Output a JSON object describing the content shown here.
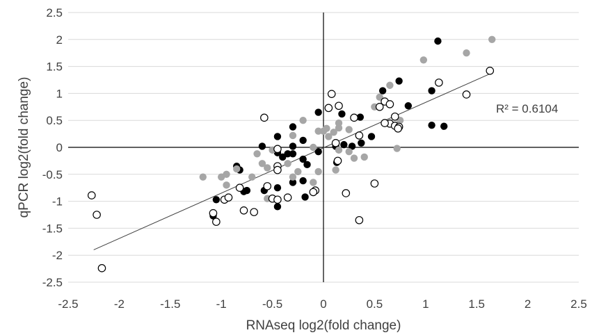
{
  "chart_data": {
    "type": "scatter",
    "title": "",
    "xlabel": "RNAseq log2(fold change)",
    "ylabel": "qPCR log2(fold change)",
    "xlim": [
      -2.5,
      2.5
    ],
    "ylim": [
      -2.5,
      2.5
    ],
    "x_ticks": [
      "-2.5",
      "-2",
      "-1.5",
      "-1",
      "-0.5",
      "0",
      "0.5",
      "1",
      "1.5",
      "2",
      "2.5"
    ],
    "y_ticks": [
      "2.5",
      "2",
      "1.5",
      "1",
      "0.5",
      "0",
      "-0.5",
      "-1",
      "-1.5",
      "-2",
      "-2.5"
    ],
    "grid": "horizontal",
    "legend": "none",
    "trendline": {
      "x": [
        -2.25,
        1.65
      ],
      "y": [
        -1.9,
        1.38
      ]
    },
    "annotation": "R² = 0.6104",
    "series": [
      {
        "style": "filled-black",
        "color": "#000000",
        "points": [
          [
            1.12,
            1.97
          ],
          [
            0.74,
            1.23
          ],
          [
            0.58,
            1.05
          ],
          [
            1.06,
            1.05
          ],
          [
            0.83,
            0.77
          ],
          [
            1.06,
            0.41
          ],
          [
            1.18,
            0.39
          ],
          [
            0.36,
            0.56
          ],
          [
            0.18,
            0.62
          ],
          [
            -0.05,
            0.65
          ],
          [
            -0.3,
            0.38
          ],
          [
            -0.45,
            0.2
          ],
          [
            -0.2,
            0.13
          ],
          [
            -0.6,
            0.02
          ],
          [
            -0.3,
            0.02
          ],
          [
            -0.45,
            -0.1
          ],
          [
            -0.35,
            -0.12
          ],
          [
            -0.4,
            -0.18
          ],
          [
            -0.2,
            -0.22
          ],
          [
            -0.3,
            -0.12
          ],
          [
            -0.05,
            -0.08
          ],
          [
            0.12,
            0.02
          ],
          [
            0.2,
            0.05
          ],
          [
            0.28,
            0.02
          ],
          [
            0.37,
            0.08
          ],
          [
            0.47,
            0.2
          ],
          [
            -0.85,
            -0.35
          ],
          [
            -0.82,
            -0.42
          ],
          [
            -0.75,
            -0.8
          ],
          [
            -0.78,
            -0.82
          ],
          [
            -0.58,
            -0.8
          ],
          [
            -0.45,
            -0.75
          ],
          [
            -0.3,
            -0.65
          ],
          [
            -0.2,
            -0.62
          ],
          [
            -0.18,
            -0.92
          ],
          [
            -0.45,
            -1.1
          ],
          [
            -1.05,
            -0.97
          ],
          [
            -1.08,
            -1.27
          ],
          [
            -0.16,
            -0.32
          ],
          [
            0.13,
            -0.28
          ]
        ]
      },
      {
        "style": "filled-gray",
        "color": "#a6a6a6",
        "points": [
          [
            1.65,
            2.0
          ],
          [
            1.4,
            1.75
          ],
          [
            0.98,
            1.62
          ],
          [
            0.65,
            1.15
          ],
          [
            0.55,
            0.93
          ],
          [
            0.5,
            0.75
          ],
          [
            0.75,
            0.5
          ],
          [
            0.72,
            -0.02
          ],
          [
            0.15,
            0.45
          ],
          [
            0.15,
            0.36
          ],
          [
            0.25,
            0.33
          ],
          [
            0.0,
            0.3
          ],
          [
            -0.05,
            0.3
          ],
          [
            0.03,
            0.35
          ],
          [
            0.1,
            0.28
          ],
          [
            -0.2,
            0.5
          ],
          [
            -0.3,
            0.22
          ],
          [
            0.05,
            0.2
          ],
          [
            -0.1,
            0.0
          ],
          [
            0.25,
            -0.08
          ],
          [
            0.3,
            -0.2
          ],
          [
            0.4,
            -0.18
          ],
          [
            -0.5,
            -0.05
          ],
          [
            -0.6,
            -0.3
          ],
          [
            -0.55,
            -0.38
          ],
          [
            -0.35,
            -0.3
          ],
          [
            -0.25,
            -0.45
          ],
          [
            -0.7,
            -0.55
          ],
          [
            -0.85,
            -0.4
          ],
          [
            -0.95,
            -0.5
          ],
          [
            -1.0,
            -0.55
          ],
          [
            -1.18,
            -0.55
          ],
          [
            -0.95,
            -0.7
          ],
          [
            -0.55,
            -0.95
          ],
          [
            -0.3,
            -0.55
          ],
          [
            -0.65,
            -0.12
          ],
          [
            -0.05,
            -0.45
          ],
          [
            0.12,
            -0.42
          ],
          [
            -0.1,
            -0.65
          ],
          [
            0.15,
            -0.05
          ]
        ]
      },
      {
        "style": "open-circle",
        "color": "#000000",
        "points": [
          [
            1.63,
            1.42
          ],
          [
            1.13,
            1.2
          ],
          [
            1.4,
            0.98
          ],
          [
            0.08,
            0.99
          ],
          [
            0.15,
            0.77
          ],
          [
            0.05,
            0.73
          ],
          [
            0.3,
            0.55
          ],
          [
            0.55,
            0.75
          ],
          [
            0.6,
            0.85
          ],
          [
            0.65,
            0.8
          ],
          [
            0.65,
            0.44
          ],
          [
            0.7,
            0.57
          ],
          [
            0.7,
            0.4
          ],
          [
            0.74,
            0.38
          ],
          [
            0.73,
            0.35
          ],
          [
            0.6,
            0.45
          ],
          [
            0.35,
            0.22
          ],
          [
            -0.58,
            0.55
          ],
          [
            -0.45,
            -0.03
          ],
          [
            -0.45,
            -0.35
          ],
          [
            -0.45,
            -0.42
          ],
          [
            -0.08,
            -0.8
          ],
          [
            -0.5,
            -0.95
          ],
          [
            -0.45,
            -0.97
          ],
          [
            -0.35,
            -0.93
          ],
          [
            -0.55,
            -0.72
          ],
          [
            -0.1,
            -0.83
          ],
          [
            0.22,
            -0.85
          ],
          [
            0.5,
            -0.67
          ],
          [
            0.35,
            -1.35
          ],
          [
            -0.82,
            -0.75
          ],
          [
            -0.97,
            -0.97
          ],
          [
            -0.93,
            -0.93
          ],
          [
            -0.78,
            -1.17
          ],
          [
            -0.68,
            -1.2
          ],
          [
            -1.05,
            -1.38
          ],
          [
            -1.08,
            -1.22
          ],
          [
            -2.27,
            -0.89
          ],
          [
            -2.22,
            -1.25
          ],
          [
            -2.17,
            -2.24
          ],
          [
            0.14,
            -0.25
          ],
          [
            0.12,
            0.08
          ]
        ]
      }
    ]
  }
}
